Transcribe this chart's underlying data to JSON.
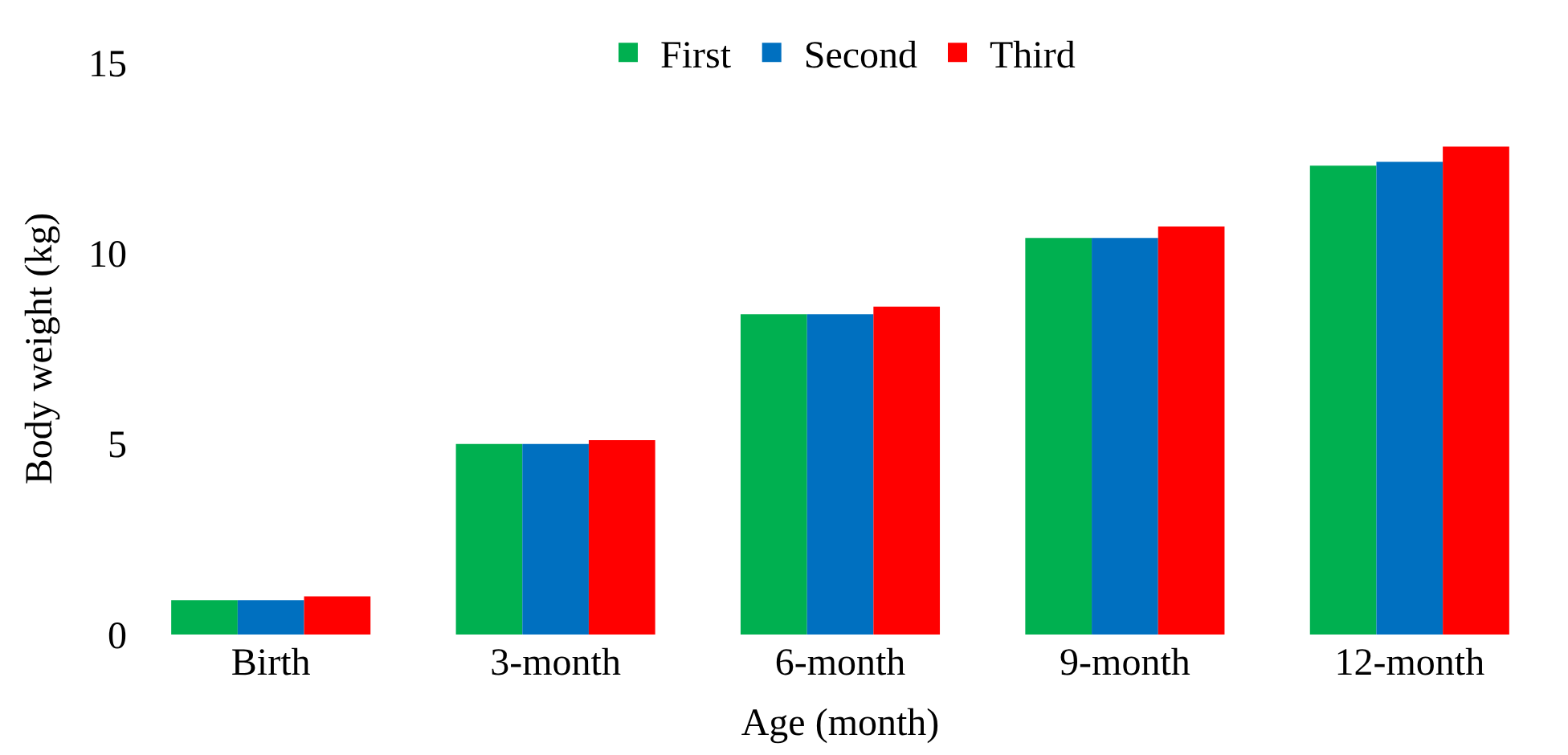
{
  "chart_data": {
    "type": "bar",
    "xlabel": "Age (month)",
    "ylabel": "Body weight (kg)",
    "categories": [
      "Birth",
      "3-month",
      "6-month",
      "9-month",
      "12-month"
    ],
    "series": [
      {
        "name": "First",
        "color": "#00b050",
        "values": [
          0.9,
          5.0,
          8.4,
          10.4,
          12.3
        ]
      },
      {
        "name": "Second",
        "color": "#0070c0",
        "values": [
          0.9,
          5.0,
          8.4,
          10.4,
          12.4
        ]
      },
      {
        "name": "Third",
        "color": "#ff0000",
        "values": [
          1.0,
          5.1,
          8.6,
          10.7,
          12.8
        ]
      }
    ],
    "ylim": [
      0,
      15
    ],
    "yticks": [
      0,
      5,
      10,
      15
    ],
    "legend": "top"
  }
}
